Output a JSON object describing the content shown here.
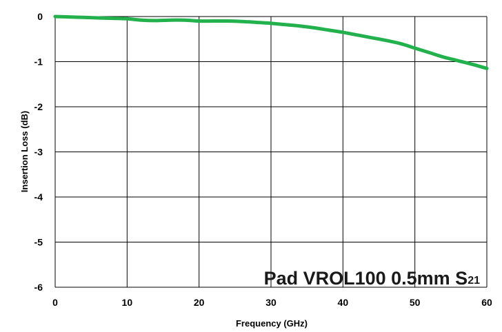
{
  "chart_data": {
    "type": "line",
    "title": "",
    "annotation": {
      "text": "Pad VROL100 0.5mm S",
      "subscript": "21",
      "position": "bottom-right"
    },
    "xlabel": "Frequency (GHz)",
    "ylabel": "Insertion Loss (dB)",
    "xlim": [
      0,
      60
    ],
    "ylim": [
      -6,
      0
    ],
    "xticks": [
      0,
      10,
      20,
      30,
      40,
      50,
      60
    ],
    "yticks": [
      0,
      -1,
      -2,
      -3,
      -4,
      -5,
      -6
    ],
    "xtick_labels": [
      "0",
      "10",
      "20",
      "30",
      "40",
      "50",
      "60"
    ],
    "ytick_labels": [
      "0",
      "-1",
      "-2",
      "-3",
      "-4",
      "-5",
      "-6"
    ],
    "grid": true,
    "legend": "none",
    "series": [
      {
        "color": "#22b14c",
        "x": [
          0,
          2,
          4,
          6,
          8,
          10,
          12,
          14,
          16,
          18,
          20,
          22,
          24,
          26,
          28,
          30,
          32,
          34,
          36,
          38,
          40,
          42,
          44,
          46,
          48,
          50,
          52,
          54,
          56,
          58,
          60
        ],
        "y": [
          0,
          -0.01,
          -0.02,
          -0.03,
          -0.04,
          -0.05,
          -0.08,
          -0.09,
          -0.08,
          -0.08,
          -0.1,
          -0.1,
          -0.1,
          -0.11,
          -0.13,
          -0.15,
          -0.18,
          -0.21,
          -0.25,
          -0.3,
          -0.35,
          -0.41,
          -0.47,
          -0.53,
          -0.6,
          -0.7,
          -0.8,
          -0.9,
          -0.98,
          -1.06,
          -1.15
        ]
      }
    ]
  },
  "colors": {
    "line": "#22b14c",
    "grid": "#000000",
    "background": "#ffffff"
  }
}
